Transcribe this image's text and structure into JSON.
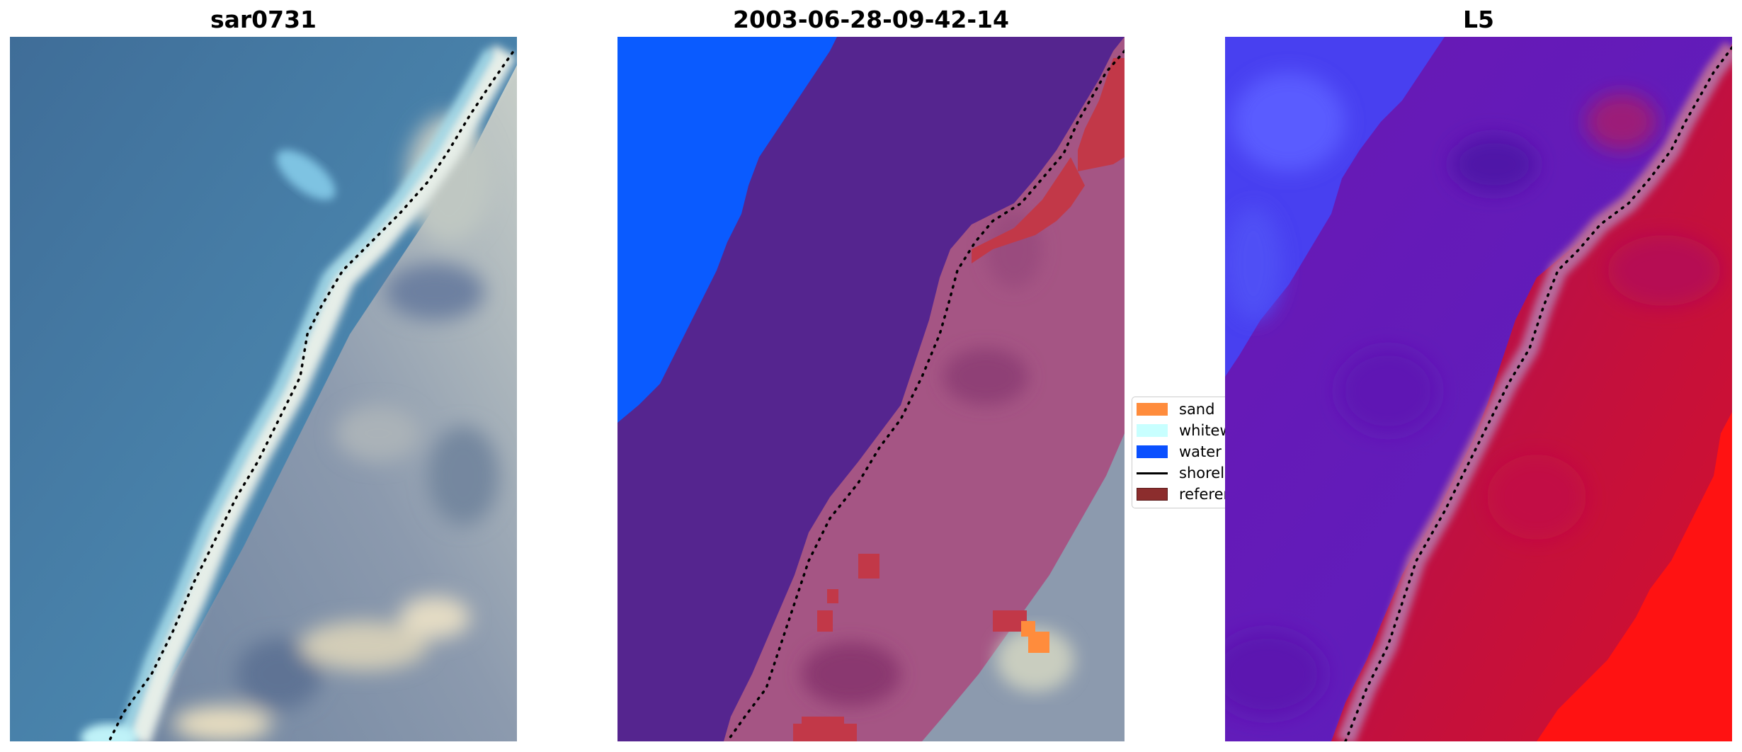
{
  "panels": [
    {
      "title": "sar0731"
    },
    {
      "title": "2003-06-28-09-42-14"
    },
    {
      "title": "L5"
    }
  ],
  "legend": {
    "items": [
      {
        "label": "sand",
        "color": "#ff8c3c"
      },
      {
        "label": "whitewater",
        "color": "#c8ffff"
      },
      {
        "label": "water",
        "color": "#0a50ff"
      },
      {
        "label": "shoreline",
        "color": "#000000"
      },
      {
        "label": "reference",
        "color": "#8c2d2d"
      }
    ]
  },
  "colors": {
    "sea": "#4d7fa3",
    "sea_deep": "#3f6d98",
    "beach": "#e8eef0",
    "land": "#8796aa",
    "class_water_region": "#55258f",
    "class_land_overlay": "#a55584",
    "l5_water": "#5c1fbf",
    "l5_land": "#c4103c",
    "l5_bright": "#ff1010",
    "l5_far_water": "#4840f0"
  }
}
